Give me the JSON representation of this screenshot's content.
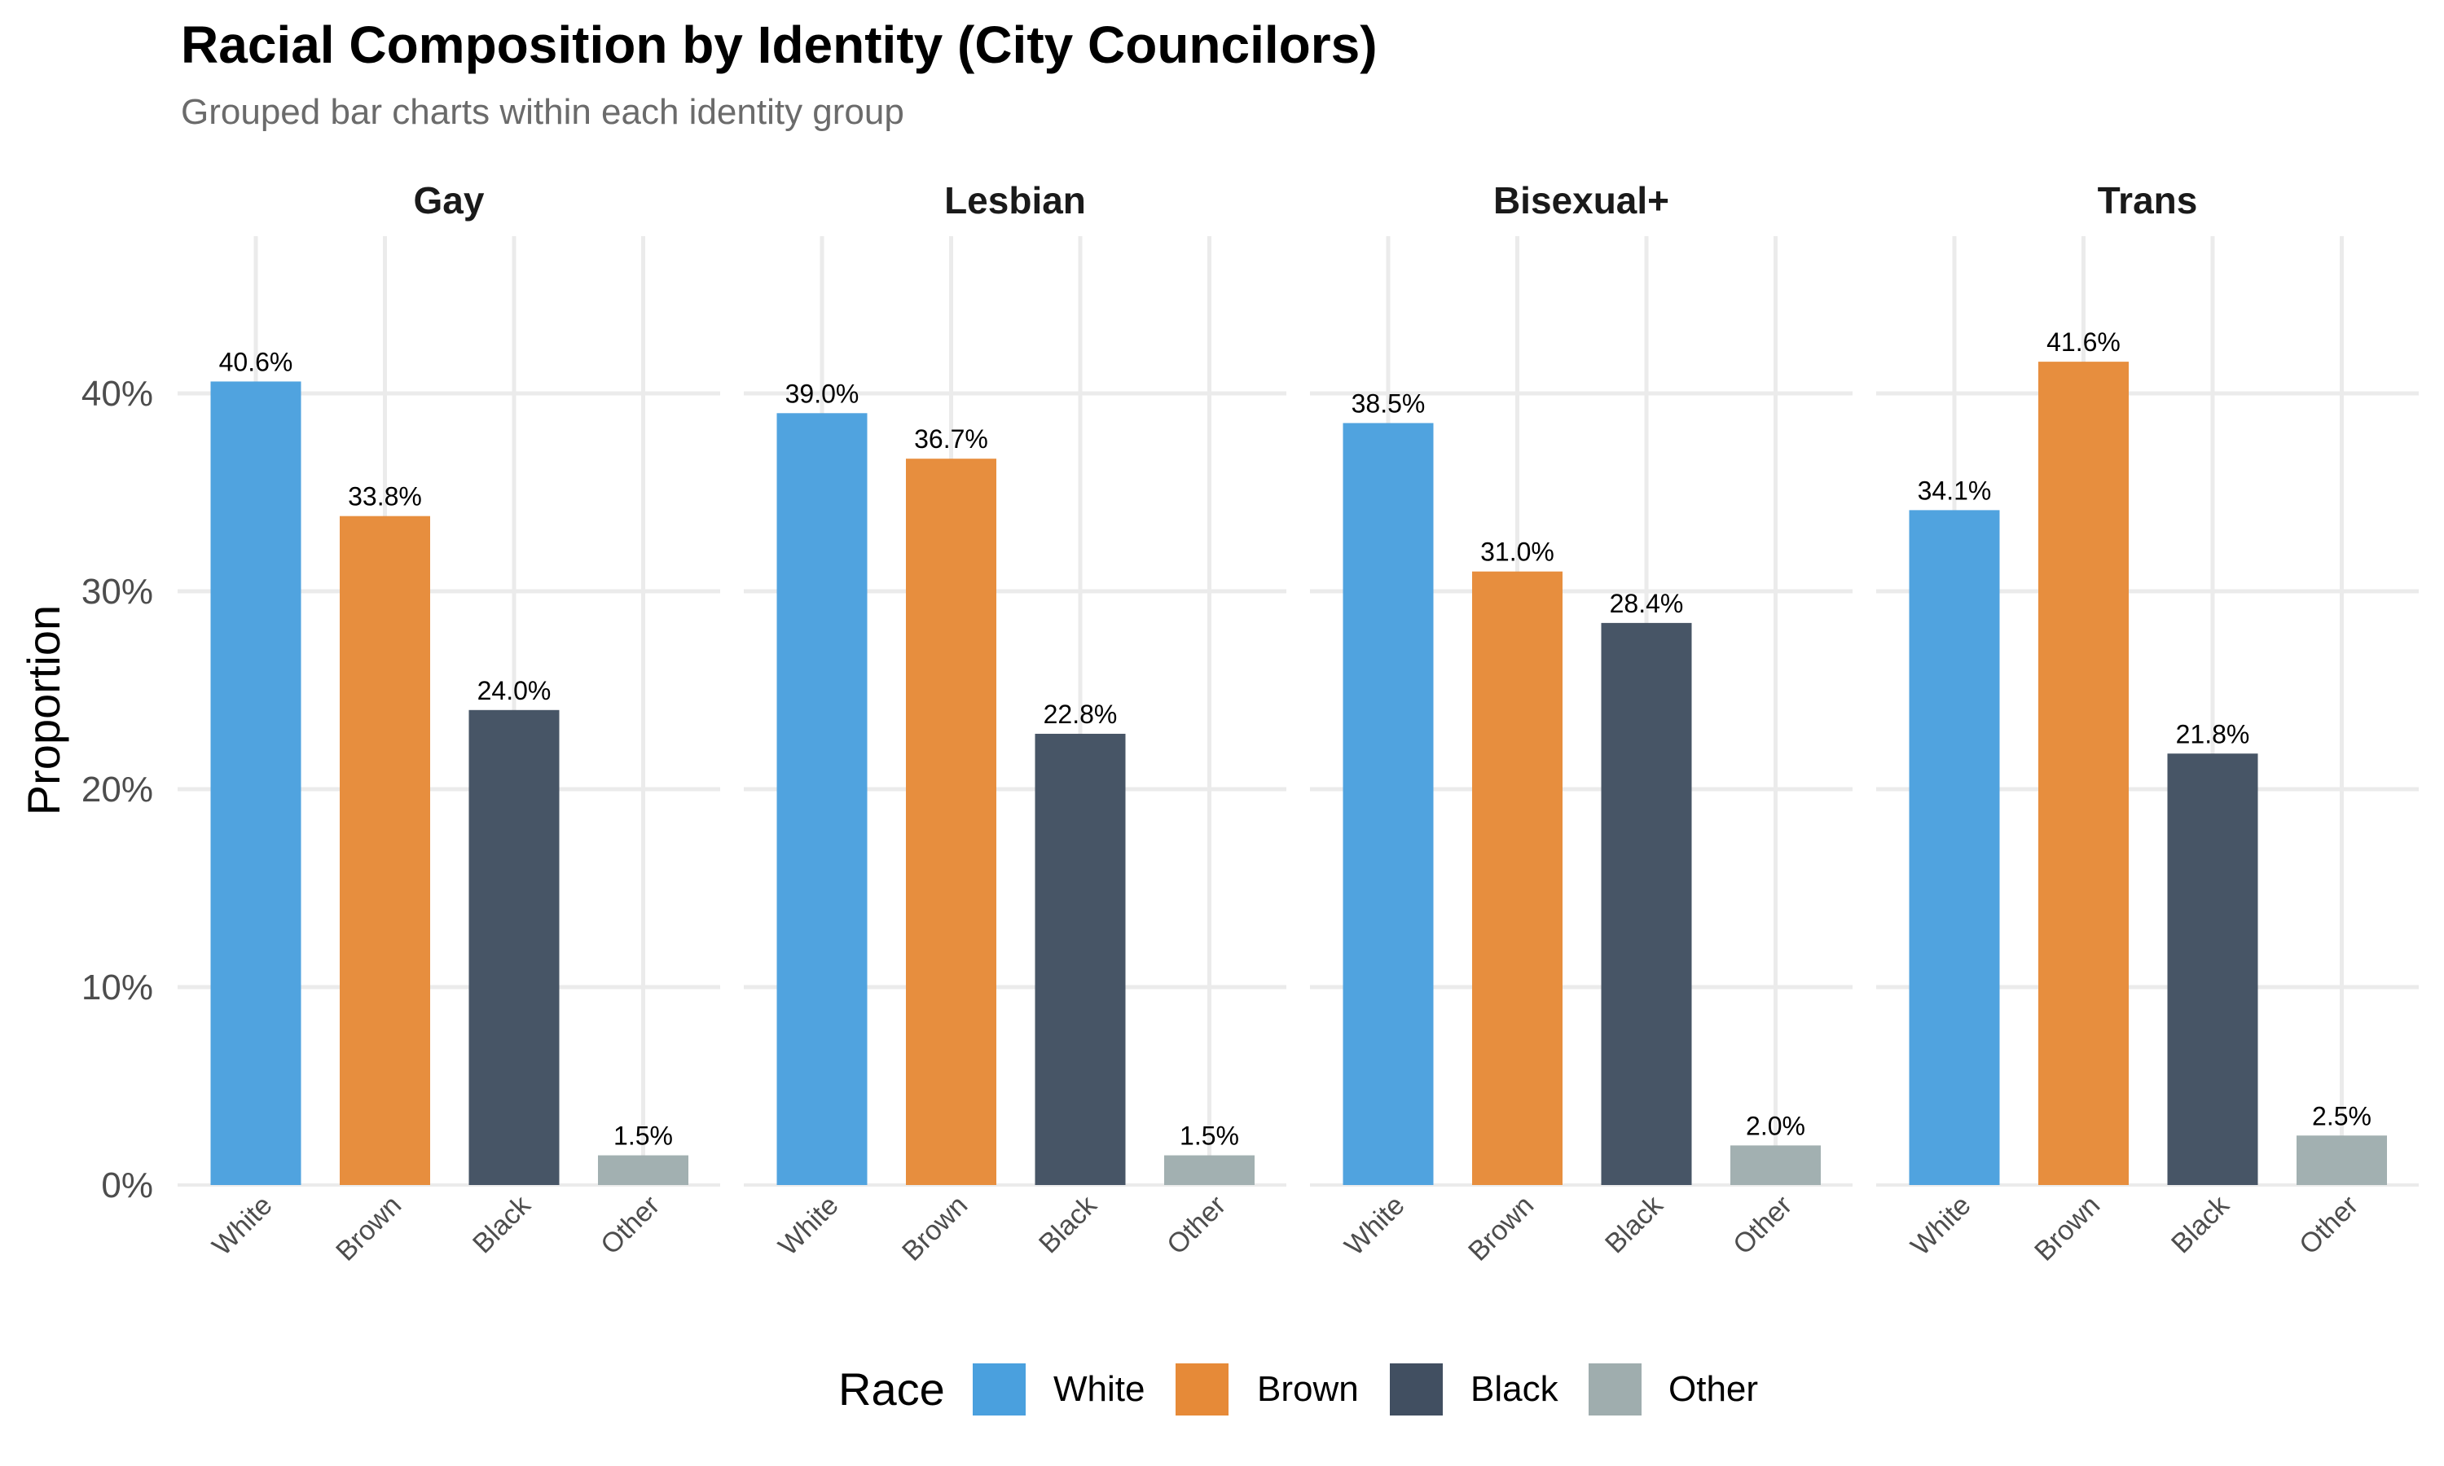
{
  "chart_data": {
    "type": "bar",
    "title": "Racial Composition by Identity (City Councilors)",
    "subtitle": "Grouped bar charts within each identity group",
    "xlabel": "",
    "ylabel": "Proportion",
    "ylim": [
      0,
      0.48
    ],
    "yticks": [
      0,
      0.1,
      0.2,
      0.3,
      0.4
    ],
    "ytick_labels": [
      "0%",
      "10%",
      "20%",
      "30%",
      "40%"
    ],
    "grid": true,
    "facets": [
      "Gay",
      "Lesbian",
      "Bisexual+",
      "Trans"
    ],
    "categories": [
      "White",
      "Brown",
      "Black",
      "Other"
    ],
    "series": [
      {
        "name": "Gay",
        "values": [
          0.406,
          0.338,
          0.24,
          0.015
        ],
        "labels": [
          "40.6%",
          "33.8%",
          "24.0%",
          "1.5%"
        ]
      },
      {
        "name": "Lesbian",
        "values": [
          0.39,
          0.367,
          0.228,
          0.015
        ],
        "labels": [
          "39.0%",
          "36.7%",
          "22.8%",
          "1.5%"
        ]
      },
      {
        "name": "Bisexual+",
        "values": [
          0.385,
          0.31,
          0.284,
          0.02
        ],
        "labels": [
          "38.5%",
          "31.0%",
          "28.4%",
          "2.0%"
        ]
      },
      {
        "name": "Trans",
        "values": [
          0.341,
          0.416,
          0.218,
          0.025
        ],
        "labels": [
          "34.1%",
          "41.6%",
          "21.8%",
          "2.5%"
        ]
      }
    ],
    "legend": {
      "title": "Race",
      "position": "bottom",
      "entries": [
        {
          "label": "White",
          "color": "#4AA0DE"
        },
        {
          "label": "Brown",
          "color": "#E68A38"
        },
        {
          "label": "Black",
          "color": "#414F61"
        },
        {
          "label": "Other",
          "color": "#9FADAE"
        }
      ]
    }
  },
  "colors": {
    "grid": "#EBEBEB",
    "axis_text": "#4D4D4D",
    "strip_text": "#1A1A1A",
    "subtitle": "#6B6B6B"
  }
}
